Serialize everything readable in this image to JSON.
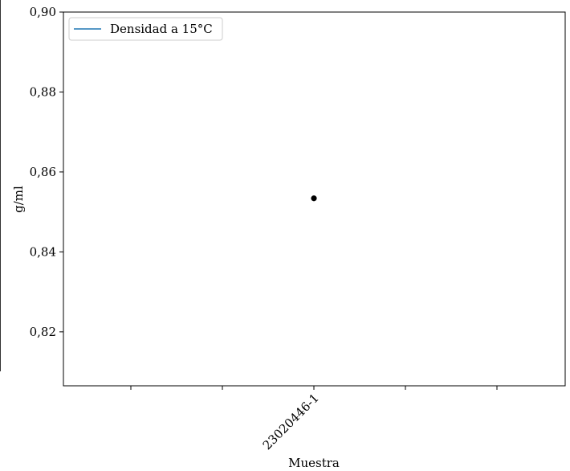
{
  "chart_data": {
    "type": "scatter",
    "title": "",
    "xlabel": "Muestra",
    "ylabel": "g/ml",
    "categories": [
      "",
      "",
      "23020446-1",
      "",
      ""
    ],
    "series": [
      {
        "name": "Densidad a 15°C",
        "points": [
          {
            "x": "23020446-1",
            "y": 0.8534
          }
        ],
        "marker_color": "#000000",
        "legend_color": "#1f77b4"
      }
    ],
    "ylim": [
      0.8065,
      0.9
    ],
    "yticks": [
      {
        "value": 0.82,
        "label": "0,82"
      },
      {
        "value": 0.84,
        "label": "0,84"
      },
      {
        "value": 0.86,
        "label": "0,86"
      },
      {
        "value": 0.88,
        "label": "0,88"
      },
      {
        "value": 0.9,
        "label": "0,90"
      }
    ],
    "grid": false,
    "legend_position": "upper-left"
  }
}
